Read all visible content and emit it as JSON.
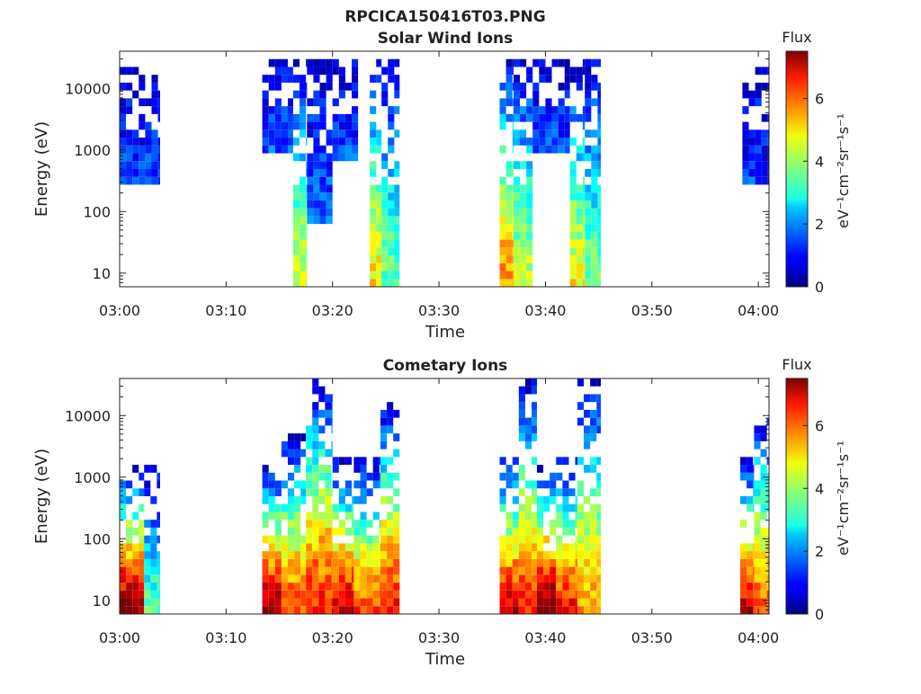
{
  "figure_title": "RPCICA150416T03.PNG",
  "colors": {
    "colormap": "jet",
    "background": "#ffffff",
    "axes": "#222222",
    "grid": "#b0b0b0"
  },
  "chart_data": [
    {
      "type": "heatmap",
      "title": "Solar Wind Ions",
      "xlabel": "Time",
      "ylabel": "Energy (eV)",
      "x_ticks": [
        "03:00",
        "03:10",
        "03:20",
        "03:30",
        "03:40",
        "03:50",
        "04:00"
      ],
      "x_range_minutes": [
        0,
        61
      ],
      "y_scale": "log",
      "y_ticks": [
        10,
        100,
        1000,
        10000
      ],
      "y_range": [
        6,
        40000
      ],
      "grid": false,
      "colorbar": {
        "label": "Flux",
        "unit": "eV⁻¹cm⁻²sr⁻¹s⁻¹",
        "range": [
          0,
          7.5
        ],
        "ticks": [
          0,
          2,
          4,
          6
        ]
      },
      "bursts": [
        {
          "start_min": 0.0,
          "end_min": 1.8,
          "e_lo": 300,
          "e_hi": 25000,
          "core": 1.0,
          "spread": 0.7
        },
        {
          "start_min": 1.8,
          "end_min": 3.8,
          "e_lo": 300,
          "e_hi": 15000,
          "core": 1.0,
          "spread": 0.8
        },
        {
          "start_min": 13.4,
          "end_min": 16.3,
          "e_lo": 1000,
          "e_hi": 30000,
          "core": 1.0,
          "spread": 0.9
        },
        {
          "start_min": 16.3,
          "end_min": 17.6,
          "e_lo": 6,
          "e_hi": 30000,
          "core": 3.8,
          "spread": 1.2
        },
        {
          "start_min": 17.6,
          "end_min": 20.0,
          "e_lo": 60,
          "e_hi": 30000,
          "core": 1.2,
          "spread": 1.1
        },
        {
          "start_min": 20.0,
          "end_min": 22.4,
          "e_lo": 700,
          "e_hi": 30000,
          "core": 1.0,
          "spread": 0.8
        },
        {
          "start_min": 23.5,
          "end_min": 24.6,
          "e_lo": 6,
          "e_hi": 30000,
          "core": 4.3,
          "spread": 1.3
        },
        {
          "start_min": 24.6,
          "end_min": 26.3,
          "e_lo": 6,
          "e_hi": 30000,
          "core": 3.0,
          "spread": 1.4
        },
        {
          "start_min": 35.7,
          "end_min": 37.0,
          "e_lo": 6,
          "e_hi": 30000,
          "core": 5.0,
          "spread": 1.3
        },
        {
          "start_min": 37.0,
          "end_min": 38.8,
          "e_lo": 6,
          "e_hi": 30000,
          "core": 3.8,
          "spread": 1.2
        },
        {
          "start_min": 38.8,
          "end_min": 42.3,
          "e_lo": 1000,
          "e_hi": 30000,
          "core": 1.0,
          "spread": 0.8
        },
        {
          "start_min": 42.3,
          "end_min": 43.7,
          "e_lo": 6,
          "e_hi": 30000,
          "core": 4.2,
          "spread": 1.2
        },
        {
          "start_min": 43.7,
          "end_min": 45.2,
          "e_lo": 6,
          "e_hi": 30000,
          "core": 3.2,
          "spread": 1.2
        },
        {
          "start_min": 58.5,
          "end_min": 61.0,
          "e_lo": 300,
          "e_hi": 25000,
          "core": 0.9,
          "spread": 0.7
        }
      ]
    },
    {
      "type": "heatmap",
      "title": "Cometary Ions",
      "xlabel": "Time",
      "ylabel": "Energy (eV)",
      "x_ticks": [
        "03:00",
        "03:10",
        "03:20",
        "03:30",
        "03:40",
        "03:50",
        "04:00"
      ],
      "x_range_minutes": [
        0,
        61
      ],
      "y_scale": "log",
      "y_ticks": [
        10,
        100,
        1000,
        10000
      ],
      "y_range": [
        6,
        40000
      ],
      "grid": false,
      "colorbar": {
        "label": "Flux",
        "unit": "eV⁻¹cm⁻²sr⁻¹s⁻¹",
        "range": [
          0,
          7.5
        ],
        "ticks": [
          0,
          2,
          4,
          6
        ]
      },
      "bursts": [
        {
          "start_min": 0.0,
          "end_min": 2.3,
          "e_lo": 6,
          "e_hi": 1500,
          "core": 7.0,
          "spread": 1.2
        },
        {
          "start_min": 2.3,
          "end_min": 3.8,
          "e_lo": 6,
          "e_hi": 1500,
          "core": 3.0,
          "spread": 1.0
        },
        {
          "start_min": 13.4,
          "end_min": 15.2,
          "e_lo": 6,
          "e_hi": 1500,
          "core": 6.8,
          "spread": 1.2
        },
        {
          "start_min": 15.2,
          "end_min": 17.5,
          "e_lo": 6,
          "e_hi": 5000,
          "core": 5.5,
          "spread": 1.3
        },
        {
          "start_min": 17.5,
          "end_min": 20.0,
          "e_lo": 6,
          "e_hi": 35000,
          "core": 5.8,
          "spread": 1.3
        },
        {
          "start_min": 20.0,
          "end_min": 22.0,
          "e_lo": 6,
          "e_hi": 2000,
          "core": 6.5,
          "spread": 1.2
        },
        {
          "start_min": 22.0,
          "end_min": 24.5,
          "e_lo": 6,
          "e_hi": 2000,
          "core": 5.5,
          "spread": 1.2
        },
        {
          "start_min": 24.5,
          "end_min": 26.3,
          "e_lo": 6,
          "e_hi": 15000,
          "core": 6.0,
          "spread": 1.2
        },
        {
          "start_min": 35.7,
          "end_min": 37.5,
          "e_lo": 6,
          "e_hi": 2000,
          "core": 6.5,
          "spread": 1.2
        },
        {
          "start_min": 37.5,
          "end_min": 39.2,
          "e_lo": 6,
          "e_hi": 35000,
          "core": 5.8,
          "spread": 1.2
        },
        {
          "start_min": 39.2,
          "end_min": 41.0,
          "e_lo": 6,
          "e_hi": 1500,
          "core": 7.2,
          "spread": 1.2
        },
        {
          "start_min": 41.0,
          "end_min": 43.0,
          "e_lo": 6,
          "e_hi": 2000,
          "core": 6.0,
          "spread": 1.3
        },
        {
          "start_min": 43.0,
          "end_min": 45.2,
          "e_lo": 6,
          "e_hi": 35000,
          "core": 4.8,
          "spread": 1.3
        },
        {
          "start_min": 58.3,
          "end_min": 59.6,
          "e_lo": 6,
          "e_hi": 2000,
          "core": 6.5,
          "spread": 1.2
        },
        {
          "start_min": 59.6,
          "end_min": 61.0,
          "e_lo": 6,
          "e_hi": 10000,
          "core": 5.5,
          "spread": 1.2
        }
      ]
    }
  ]
}
